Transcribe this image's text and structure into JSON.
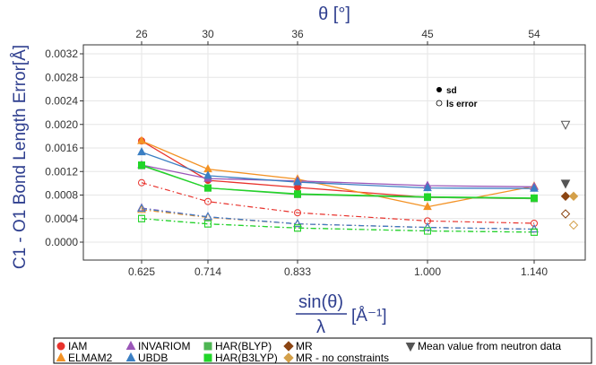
{
  "chart_data": {
    "type": "line",
    "top_axis": {
      "label": "θ [°]",
      "ticks": [
        "26",
        "30",
        "36",
        "45",
        "54"
      ]
    },
    "x": [
      0.625,
      0.714,
      0.833,
      1.0,
      1.14
    ],
    "x_tick_labels": [
      "0.625",
      "0.714",
      "0.833",
      "1.000",
      "1.140"
    ],
    "xlabel": {
      "numerator": "sin(θ)",
      "denominator": "λ",
      "unit": "[Å⁻¹]"
    },
    "ylabel": "C1 - O1 Bond Length Error[Å]",
    "y_tick_labels": [
      "0.0000",
      "0.0004",
      "0.0008",
      "0.0012",
      "0.0016",
      "0.0020",
      "0.0024",
      "0.0028",
      "0.0032"
    ],
    "ylim": [
      0,
      0.0032
    ],
    "grid": true,
    "inset_legend": {
      "sd": "sd",
      "ls": "ls error"
    },
    "series": [
      {
        "name": "IAM",
        "color": "#e8322c",
        "marker": "circle",
        "sd": [
          0.00172,
          0.00105,
          0.00093,
          0.00076,
          0.00074
        ],
        "ls": [
          0.00101,
          0.00069,
          0.0005,
          0.00036,
          0.00032
        ]
      },
      {
        "name": "ELMAM2",
        "color": "#f39224",
        "marker": "triangle",
        "sd": [
          0.00172,
          0.00124,
          0.00107,
          0.0006,
          0.00095
        ],
        "ls": [
          0.00055,
          0.00042,
          0.00031,
          0.00025,
          0.00022
        ]
      },
      {
        "name": "INVARIOM",
        "color": "#9a56b8",
        "marker": "triangle",
        "sd": [
          0.00131,
          0.00108,
          0.00104,
          0.00096,
          0.00094
        ],
        "ls": [
          0.00058,
          0.00043,
          0.00031,
          0.00025,
          0.00022
        ]
      },
      {
        "name": "UBDB",
        "color": "#3b7fc3",
        "marker": "triangle",
        "sd": [
          0.00153,
          0.00113,
          0.00102,
          0.00092,
          0.00091
        ],
        "ls": [
          0.00057,
          0.00043,
          0.00031,
          0.00025,
          0.00022
        ]
      },
      {
        "name": "HAR(BLYP)",
        "color": "#4eb653",
        "marker": "square",
        "sd": [
          0.0013,
          0.00092,
          0.00081,
          0.00076,
          0.00074
        ],
        "ls": [
          0.0004,
          0.00031,
          0.00024,
          0.00019,
          0.00017
        ]
      },
      {
        "name": "HAR(B3LYP)",
        "color": "#22d629",
        "marker": "square",
        "sd": [
          0.00131,
          0.00092,
          0.00082,
          0.00077,
          0.00075
        ],
        "ls": [
          0.0004,
          0.00031,
          0.00024,
          0.00019,
          0.00017
        ]
      }
    ],
    "side_points": [
      {
        "name": "Mean value from neutron data",
        "color": "#555555",
        "marker": "triangle-down",
        "sd": 0.001,
        "ls": 0.002
      },
      {
        "name": "MR",
        "color": "#8b4513",
        "marker": "diamond",
        "sd": 0.00078,
        "ls": 0.00048
      },
      {
        "name": "MR - no constraints",
        "color": "#d4a04a",
        "marker": "diamond",
        "sd": 0.00078,
        "ls": 0.00029
      }
    ],
    "legend": [
      {
        "label": "IAM",
        "color": "#e8322c",
        "marker": "circle"
      },
      {
        "label": "ELMAM2",
        "color": "#f39224",
        "marker": "triangle"
      },
      {
        "label": "INVARIOM",
        "color": "#9a56b8",
        "marker": "triangle"
      },
      {
        "label": "UBDB",
        "color": "#3b7fc3",
        "marker": "triangle"
      },
      {
        "label": "HAR(BLYP)",
        "color": "#4eb653",
        "marker": "square"
      },
      {
        "label": "HAR(B3LYP)",
        "color": "#22d629",
        "marker": "square"
      },
      {
        "label": "MR",
        "color": "#8b4513",
        "marker": "diamond"
      },
      {
        "label": "MR - no constraints",
        "color": "#d4a04a",
        "marker": "diamond"
      },
      {
        "label": "Mean value from neutron data",
        "color": "#555555",
        "marker": "triangle-down"
      }
    ]
  }
}
